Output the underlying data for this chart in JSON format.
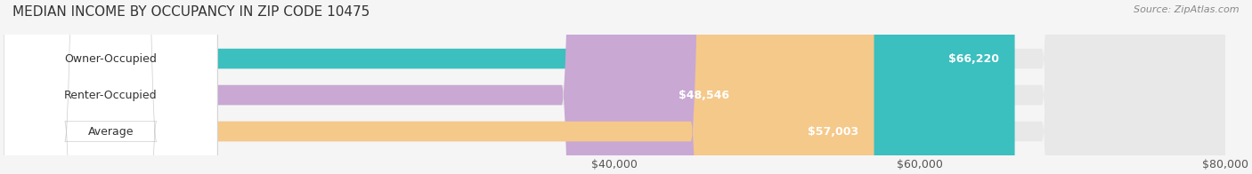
{
  "title": "MEDIAN INCOME BY OCCUPANCY IN ZIP CODE 10475",
  "source": "Source: ZipAtlas.com",
  "categories": [
    "Owner-Occupied",
    "Renter-Occupied",
    "Average"
  ],
  "values": [
    66220,
    48546,
    57003
  ],
  "bar_colors": [
    "#3bbfbf",
    "#c9a8d4",
    "#f5c98a"
  ],
  "bar_bg_color": "#e8e8e8",
  "value_labels": [
    "$66,220",
    "$48,546",
    "$57,003"
  ],
  "xlim": [
    0,
    80000
  ],
  "xticks": [
    40000,
    60000,
    80000
  ],
  "xtick_labels": [
    "$40,000",
    "$60,000",
    "$80,000"
  ],
  "background_color": "#f5f5f5",
  "bar_height": 0.55,
  "title_fontsize": 11,
  "label_fontsize": 9,
  "tick_fontsize": 9,
  "value_label_color_inside": "#ffffff",
  "value_label_color_outside": "#555555"
}
